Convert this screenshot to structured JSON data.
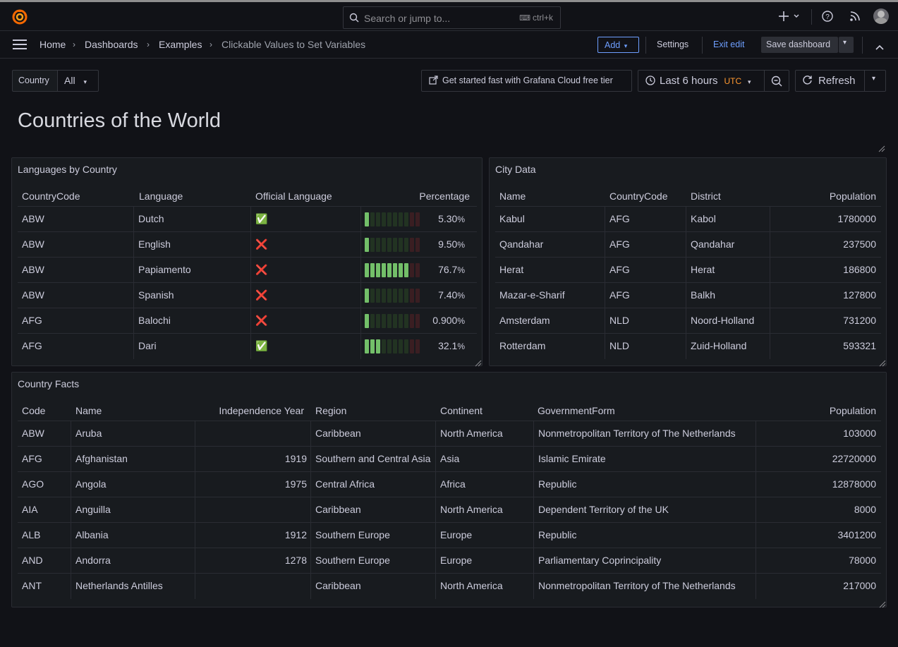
{
  "topbar": {
    "search_placeholder": "Search or jump to...",
    "search_shortcut": "ctrl+k"
  },
  "breadcrumb": [
    "Home",
    "Dashboards",
    "Examples",
    "Clickable Values to Set Variables"
  ],
  "toolbar": {
    "add_label": "Add",
    "settings_label": "Settings",
    "exit_edit_label": "Exit edit",
    "save_label": "Save dashboard"
  },
  "variables": {
    "country_label": "Country",
    "country_value": "All"
  },
  "controls": {
    "cloud_link": "Get started fast with Grafana Cloud free tier",
    "time_range": "Last 6 hours",
    "timezone": "UTC",
    "refresh_label": "Refresh"
  },
  "dashboard_title": "Countries of the World",
  "languages_panel": {
    "title": "Languages by Country",
    "headers": [
      "CountryCode",
      "Language",
      "Official Language",
      "Percentage"
    ],
    "rows": [
      {
        "code": "ABW",
        "language": "Dutch",
        "official": true,
        "official_icon": "✅",
        "pct": "5.30",
        "value": 5.3
      },
      {
        "code": "ABW",
        "language": "English",
        "official": false,
        "official_icon": "❌",
        "pct": "9.50",
        "value": 9.5
      },
      {
        "code": "ABW",
        "language": "Papiamento",
        "official": false,
        "official_icon": "❌",
        "pct": "76.7",
        "value": 76.7
      },
      {
        "code": "ABW",
        "language": "Spanish",
        "official": false,
        "official_icon": "❌",
        "pct": "7.40",
        "value": 7.4
      },
      {
        "code": "AFG",
        "language": "Balochi",
        "official": false,
        "official_icon": "❌",
        "pct": "0.900",
        "value": 0.9
      },
      {
        "code": "AFG",
        "language": "Dari",
        "official": true,
        "official_icon": "✅",
        "pct": "32.1",
        "value": 32.1
      }
    ],
    "unit": "%"
  },
  "city_panel": {
    "title": "City Data",
    "headers": [
      "Name",
      "CountryCode",
      "District",
      "Population"
    ],
    "rows": [
      {
        "name": "Kabul",
        "code": "AFG",
        "district": "Kabol",
        "population": "1780000"
      },
      {
        "name": "Qandahar",
        "code": "AFG",
        "district": "Qandahar",
        "population": "237500"
      },
      {
        "name": "Herat",
        "code": "AFG",
        "district": "Herat",
        "population": "186800"
      },
      {
        "name": "Mazar-e-Sharif",
        "code": "AFG",
        "district": "Balkh",
        "population": "127800"
      },
      {
        "name": "Amsterdam",
        "code": "NLD",
        "district": "Noord-Holland",
        "population": "731200"
      },
      {
        "name": "Rotterdam",
        "code": "NLD",
        "district": "Zuid-Holland",
        "population": "593321"
      }
    ]
  },
  "facts_panel": {
    "title": "Country Facts",
    "headers": [
      "Code",
      "Name",
      "Independence Year",
      "Region",
      "Continent",
      "GovernmentForm",
      "Population"
    ],
    "rows": [
      {
        "code": "ABW",
        "name": "Aruba",
        "year": "",
        "region": "Caribbean",
        "continent": "North America",
        "gov": "Nonmetropolitan Territory of The Netherlands",
        "population": "103000"
      },
      {
        "code": "AFG",
        "name": "Afghanistan",
        "year": "1919",
        "region": "Southern and Central Asia",
        "continent": "Asia",
        "gov": "Islamic Emirate",
        "population": "22720000"
      },
      {
        "code": "AGO",
        "name": "Angola",
        "year": "1975",
        "region": "Central Africa",
        "continent": "Africa",
        "gov": "Republic",
        "population": "12878000"
      },
      {
        "code": "AIA",
        "name": "Anguilla",
        "year": "",
        "region": "Caribbean",
        "continent": "North America",
        "gov": "Dependent Territory of the UK",
        "population": "8000"
      },
      {
        "code": "ALB",
        "name": "Albania",
        "year": "1912",
        "region": "Southern Europe",
        "continent": "Europe",
        "gov": "Republic",
        "population": "3401200"
      },
      {
        "code": "AND",
        "name": "Andorra",
        "year": "1278",
        "region": "Southern Europe",
        "continent": "Europe",
        "gov": "Parliamentary Coprincipality",
        "population": "78000"
      },
      {
        "code": "ANT",
        "name": "Netherlands Antilles",
        "year": "",
        "region": "Caribbean",
        "continent": "North America",
        "gov": "Nonmetropolitan Territory of The Netherlands",
        "population": "217000"
      }
    ]
  },
  "colors": {
    "background": "#111217",
    "panel": "#181b1f",
    "accent_blue": "#6e9fff",
    "utc_orange": "#ff9830",
    "gauge_green": "#73bf69",
    "gauge_dim": "#223322",
    "gauge_red_dim": "#3a1e22"
  }
}
